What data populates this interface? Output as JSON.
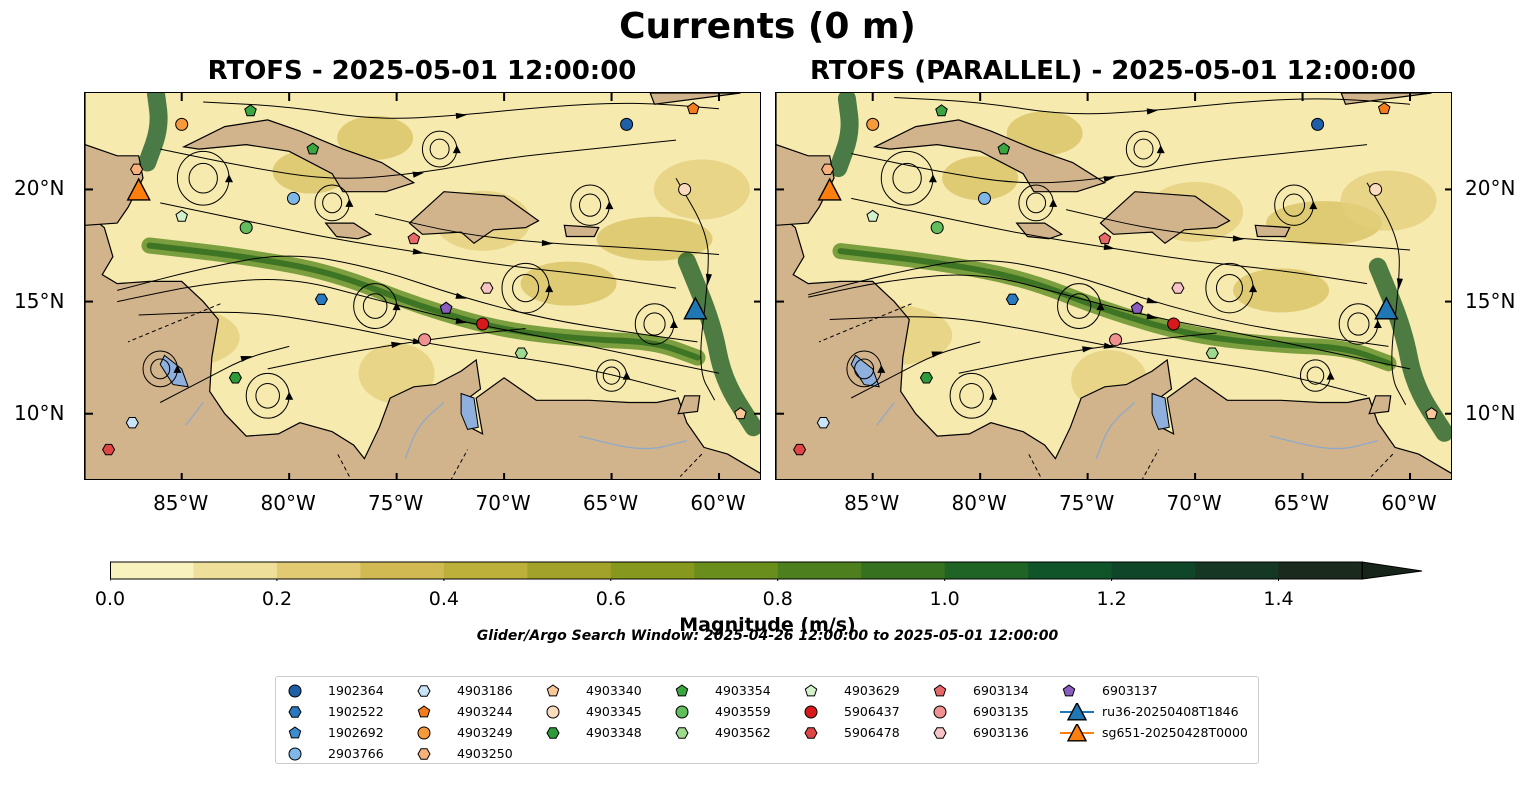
{
  "chart_data": {
    "type": "map",
    "title": "Currents (0 m)",
    "panels": [
      {
        "title": "RTOFS - 2025-05-01 12:00:00"
      },
      {
        "title": "RTOFS (PARALLEL) - 2025-05-01 12:00:00"
      }
    ],
    "extent": {
      "lon_min": -89.5,
      "lon_max": -58.0,
      "lat_min": 7.0,
      "lat_max": 24.3
    },
    "lat_ticks": [
      {
        "value": 20,
        "label": "20°N"
      },
      {
        "value": 15,
        "label": "15°N"
      },
      {
        "value": 10,
        "label": "10°N"
      }
    ],
    "lon_ticks": [
      {
        "value": -85,
        "label": "85°W"
      },
      {
        "value": -80,
        "label": "80°W"
      },
      {
        "value": -75,
        "label": "75°W"
      },
      {
        "value": -70,
        "label": "70°W"
      },
      {
        "value": -65,
        "label": "65°W"
      },
      {
        "value": -60,
        "label": "60°W"
      }
    ],
    "colorbar": {
      "label": "Magnitude (m/s)",
      "levels": [
        0.0,
        0.1,
        0.2,
        0.3,
        0.4,
        0.5,
        0.6,
        0.7,
        0.8,
        0.9,
        1.0,
        1.1,
        1.2,
        1.3,
        1.4,
        1.5
      ],
      "colors": [
        "#f8f2be",
        "#eedf9a",
        "#e2ca72",
        "#d2ba52",
        "#bcaf3a",
        "#a2a22a",
        "#86981e",
        "#6a8e1c",
        "#4d7f1e",
        "#35711f",
        "#1f6424",
        "#10552a",
        "#0f462a",
        "#173725",
        "#1a2a1c"
      ],
      "tick_labels": [
        "0.0",
        "0.2",
        "0.4",
        "0.6",
        "0.8",
        "1.0",
        "1.2",
        "1.4"
      ],
      "tick_values": [
        0.0,
        0.2,
        0.4,
        0.6,
        0.8,
        1.0,
        1.2,
        1.4
      ],
      "extend": "max"
    },
    "search_window": "Glider/Argo Search Window: 2025-04-26 12:00:00 to 2025-05-01 12:00:00",
    "legend": [
      {
        "label": "1902364",
        "marker": "circle",
        "color": "#1f5fa8"
      },
      {
        "label": "1902522",
        "marker": "hexagon",
        "color": "#2a78be"
      },
      {
        "label": "1902692",
        "marker": "pentagon",
        "color": "#3d8ed0"
      },
      {
        "label": "2903766",
        "marker": "circle",
        "color": "#7fb8e6"
      },
      {
        "label": "4903186",
        "marker": "hexagon",
        "color": "#c9e3f7"
      },
      {
        "label": "4903244",
        "marker": "pentagon",
        "color": "#f57c1a"
      },
      {
        "label": "4903249",
        "marker": "circle",
        "color": "#f79a3c"
      },
      {
        "label": "4903250",
        "marker": "hexagon",
        "color": "#f8b07a"
      },
      {
        "label": "4903340",
        "marker": "pentagon",
        "color": "#f9c79a"
      },
      {
        "label": "4903345",
        "marker": "circle",
        "color": "#fbdcbf"
      },
      {
        "label": "4903348",
        "marker": "hexagon",
        "color": "#2f9a3a"
      },
      {
        "label": "4903354",
        "marker": "pentagon",
        "color": "#3aa640"
      },
      {
        "label": "4903559",
        "marker": "circle",
        "color": "#62bd5c"
      },
      {
        "label": "4903562",
        "marker": "hexagon",
        "color": "#9fdb8f"
      },
      {
        "label": "4903629",
        "marker": "pentagon",
        "color": "#d3f2cb"
      },
      {
        "label": "5906437",
        "marker": "circle",
        "color": "#d7191c"
      },
      {
        "label": "5906478",
        "marker": "hexagon",
        "color": "#e04646"
      },
      {
        "label": "6903134",
        "marker": "pentagon",
        "color": "#e8686a"
      },
      {
        "label": "6903135",
        "marker": "circle",
        "color": "#f09090"
      },
      {
        "label": "6903136",
        "marker": "hexagon",
        "color": "#f7c3c6"
      },
      {
        "label": "6903137",
        "marker": "pentagon",
        "color": "#8a5dbf"
      },
      {
        "label": "ru36-20250408T1846",
        "marker": "triangle",
        "color": "#1f77b4"
      },
      {
        "label": "sg651-20250428T0000",
        "marker": "triangle",
        "color": "#ff7f0e"
      }
    ],
    "floats": [
      {
        "id": "1902364",
        "lon": -64.3,
        "lat": 22.9
      },
      {
        "id": "1902522",
        "lon": -78.5,
        "lat": 15.1
      },
      {
        "id": "1902692",
        "lon": -72.7,
        "lat": 14.7
      },
      {
        "id": "2903766",
        "lon": -79.8,
        "lat": 19.6
      },
      {
        "id": "4903186",
        "lon": -87.3,
        "lat": 9.6
      },
      {
        "id": "4903244",
        "lon": -61.2,
        "lat": 23.6
      },
      {
        "id": "4903249",
        "lon": -85.0,
        "lat": 22.9
      },
      {
        "id": "4903250",
        "lon": -87.1,
        "lat": 20.9
      },
      {
        "id": "4903340",
        "lon": -59.0,
        "lat": 10.0
      },
      {
        "id": "4903345",
        "lon": -61.6,
        "lat": 20.0
      },
      {
        "id": "4903348",
        "lon": -82.5,
        "lat": 11.6
      },
      {
        "id": "4903354",
        "lon": -81.8,
        "lat": 23.5
      },
      {
        "id": "4903559",
        "lon": -82.0,
        "lat": 18.3
      },
      {
        "id": "4903562",
        "lon": -69.2,
        "lat": 12.7
      },
      {
        "id": "4903629",
        "lon": -85.0,
        "lat": 18.8
      },
      {
        "id": "5906437",
        "lon": -71.0,
        "lat": 14.0
      },
      {
        "id": "5906478",
        "lon": -88.4,
        "lat": 8.4
      },
      {
        "id": "6903134",
        "lon": -74.2,
        "lat": 17.8
      },
      {
        "id": "6903135",
        "lon": -73.7,
        "lat": 13.3
      },
      {
        "id": "6903136",
        "lon": -70.8,
        "lat": 15.6
      },
      {
        "id": "6903137",
        "lon": -72.7,
        "lat": 14.7
      },
      {
        "id": "4903354b",
        "lon": -78.9,
        "lat": 21.8
      }
    ],
    "gliders": [
      {
        "id": "ru36-20250408T1846",
        "lon": -61.1,
        "lat": 14.6
      },
      {
        "id": "sg651-20250428T0000",
        "lon": -87.0,
        "lat": 19.9
      }
    ]
  }
}
